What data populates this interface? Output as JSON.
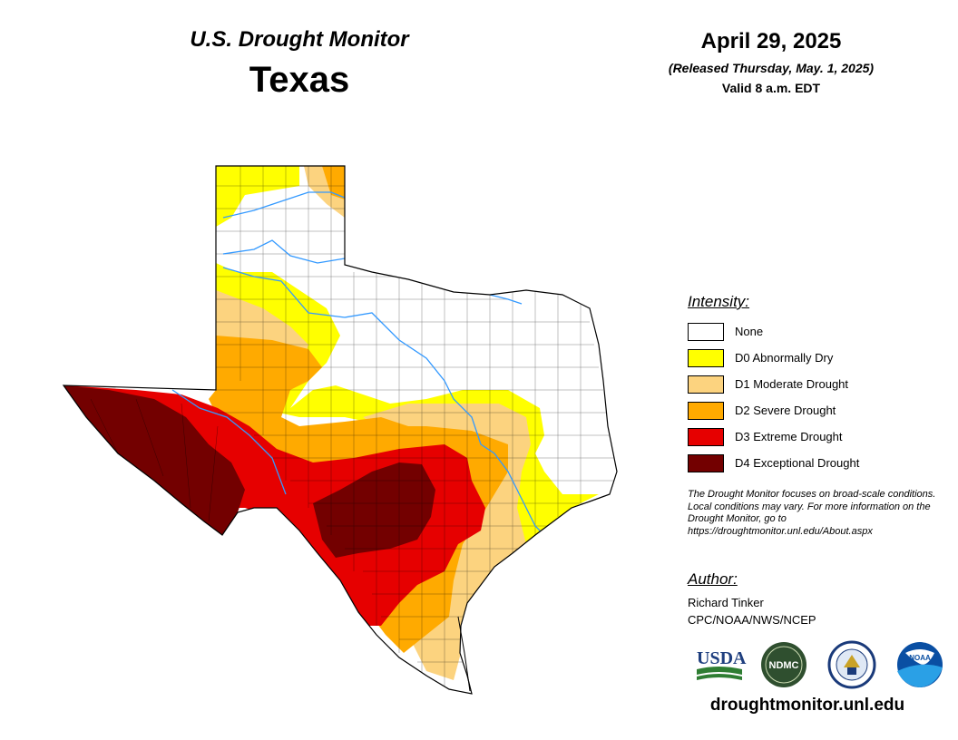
{
  "header": {
    "subtitle": "U.S. Drought Monitor",
    "state": "Texas",
    "date": "April 29, 2025",
    "released": "(Released Thursday, May. 1, 2025)",
    "valid": "Valid 8 a.m. EDT"
  },
  "legend": {
    "title": "Intensity:",
    "items": [
      {
        "label": "None",
        "color": "#ffffff"
      },
      {
        "label": "D0 Abnormally Dry",
        "color": "#ffff00"
      },
      {
        "label": "D1 Moderate Drought",
        "color": "#fcd37f"
      },
      {
        "label": "D2 Severe Drought",
        "color": "#ffaa00"
      },
      {
        "label": "D3 Extreme Drought",
        "color": "#e60000"
      },
      {
        "label": "D4 Exceptional Drought",
        "color": "#730000"
      }
    ]
  },
  "note": "The Drought Monitor focuses on broad-scale conditions. Local conditions may vary. For more information on the Drought Monitor, go to https://droughtmonitor.unl.edu/About.aspx",
  "author": {
    "title": "Author:",
    "name": "Richard Tinker",
    "org": "CPC/NOAA/NWS/NCEP"
  },
  "logos": {
    "usda": "USDA",
    "ndmc": "NDMC",
    "noaa": "NOAA"
  },
  "footer_url": "droughtmonitor.unl.edu"
}
